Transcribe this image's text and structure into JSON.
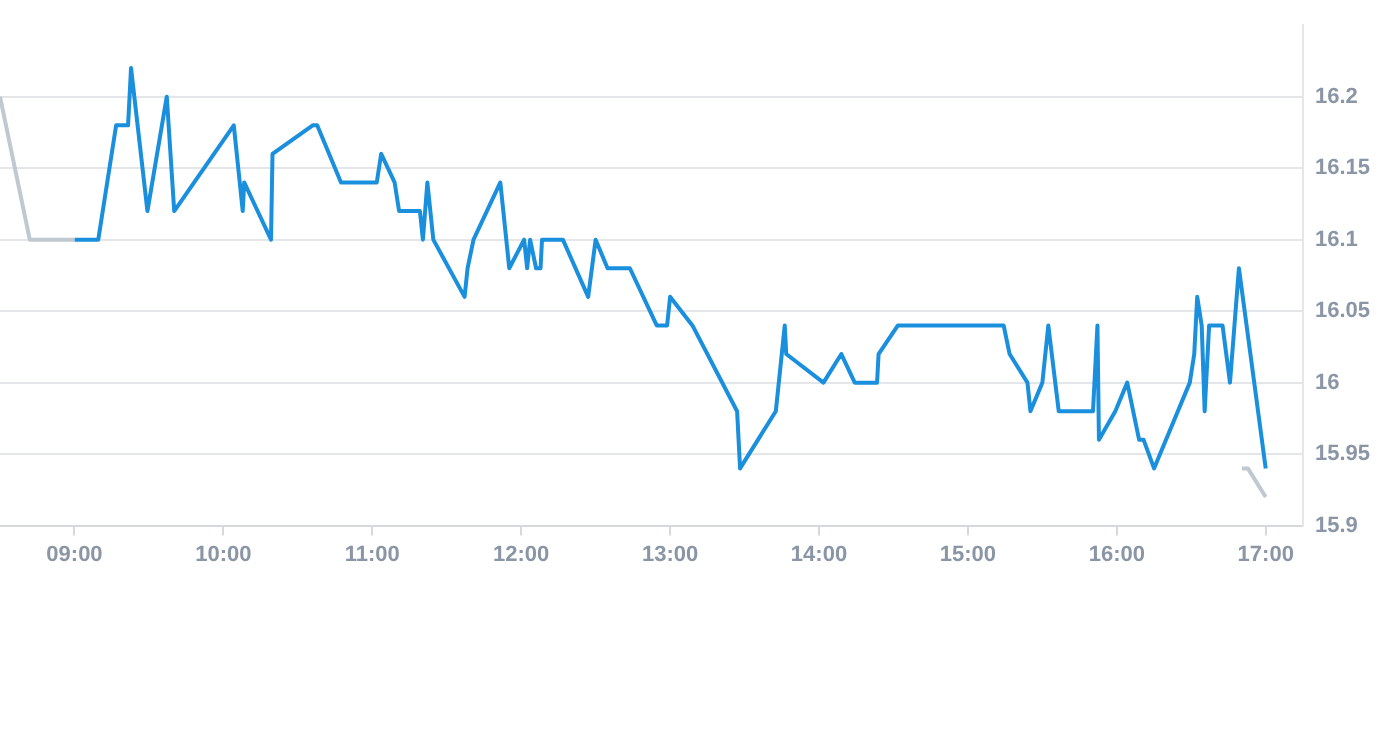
{
  "chart_data": {
    "type": "line",
    "xlim": [
      8.5,
      17.25
    ],
    "ylim": [
      15.9,
      16.25
    ],
    "xticks": [
      {
        "value": 9,
        "label": "09:00"
      },
      {
        "value": 10,
        "label": "10:00"
      },
      {
        "value": 11,
        "label": "11:00"
      },
      {
        "value": 12,
        "label": "12:00"
      },
      {
        "value": 13,
        "label": "13:00"
      },
      {
        "value": 14,
        "label": "14:00"
      },
      {
        "value": 15,
        "label": "15:00"
      },
      {
        "value": 16,
        "label": "16:00"
      },
      {
        "value": 17,
        "label": "17:00"
      }
    ],
    "yticks": [
      15.9,
      15.95,
      16,
      16.05,
      16.1,
      16.15,
      16.2
    ],
    "grid": "y",
    "legend": false,
    "marker": "none",
    "line_style": "solid",
    "series": [
      {
        "color": "#c0c8d0",
        "x": [
          8.5,
          8.7,
          9.0
        ],
        "values": [
          16.2,
          16.1,
          16.1
        ]
      },
      {
        "color": "#1a8fdd",
        "x": [
          9.0,
          9.16,
          9.28,
          9.36,
          9.38,
          9.49,
          9.62,
          9.67,
          10.07,
          10.13,
          10.14,
          10.32,
          10.33,
          10.6,
          10.63,
          10.79,
          11.03,
          11.06,
          11.15,
          11.18,
          11.32,
          11.34,
          11.37,
          11.41,
          11.62,
          11.64,
          11.68,
          11.86,
          11.92,
          12.02,
          12.04,
          12.06,
          12.1,
          12.13,
          12.14,
          12.28,
          12.45,
          12.5,
          12.58,
          12.73,
          12.91,
          12.98,
          13.0,
          13.15,
          13.45,
          13.47,
          13.71,
          13.77,
          13.78,
          14.03,
          14.15,
          14.24,
          14.39,
          14.4,
          14.53,
          15.24,
          15.28,
          15.4,
          15.42,
          15.5,
          15.54,
          15.61,
          15.84,
          15.87,
          15.88,
          15.99,
          16.07,
          16.15,
          16.18,
          16.25,
          16.49,
          16.52,
          16.54,
          16.57,
          16.59,
          16.62,
          16.71,
          16.76,
          16.82,
          17.0
        ],
        "values": [
          16.1,
          16.1,
          16.18,
          16.18,
          16.22,
          16.12,
          16.2,
          16.12,
          16.18,
          16.12,
          16.14,
          16.1,
          16.16,
          16.18,
          16.18,
          16.14,
          16.14,
          16.16,
          16.14,
          16.12,
          16.12,
          16.1,
          16.14,
          16.1,
          16.06,
          16.08,
          16.1,
          16.14,
          16.08,
          16.1,
          16.08,
          16.1,
          16.08,
          16.08,
          16.1,
          16.1,
          16.06,
          16.1,
          16.08,
          16.08,
          16.04,
          16.04,
          16.06,
          16.04,
          15.98,
          15.94,
          15.98,
          16.04,
          16.02,
          16.0,
          16.02,
          16.0,
          16.0,
          16.02,
          16.04,
          16.04,
          16.02,
          16.0,
          15.98,
          16.0,
          16.04,
          15.98,
          15.98,
          16.04,
          15.96,
          15.98,
          16.0,
          15.96,
          15.96,
          15.94,
          16.0,
          16.02,
          16.06,
          16.04,
          15.98,
          16.04,
          16.04,
          16.0,
          16.08,
          15.94
        ]
      },
      {
        "color": "#c0c8d0",
        "x": [
          16.84,
          16.88,
          17.0
        ],
        "values": [
          15.94,
          15.94,
          15.92
        ]
      }
    ]
  }
}
